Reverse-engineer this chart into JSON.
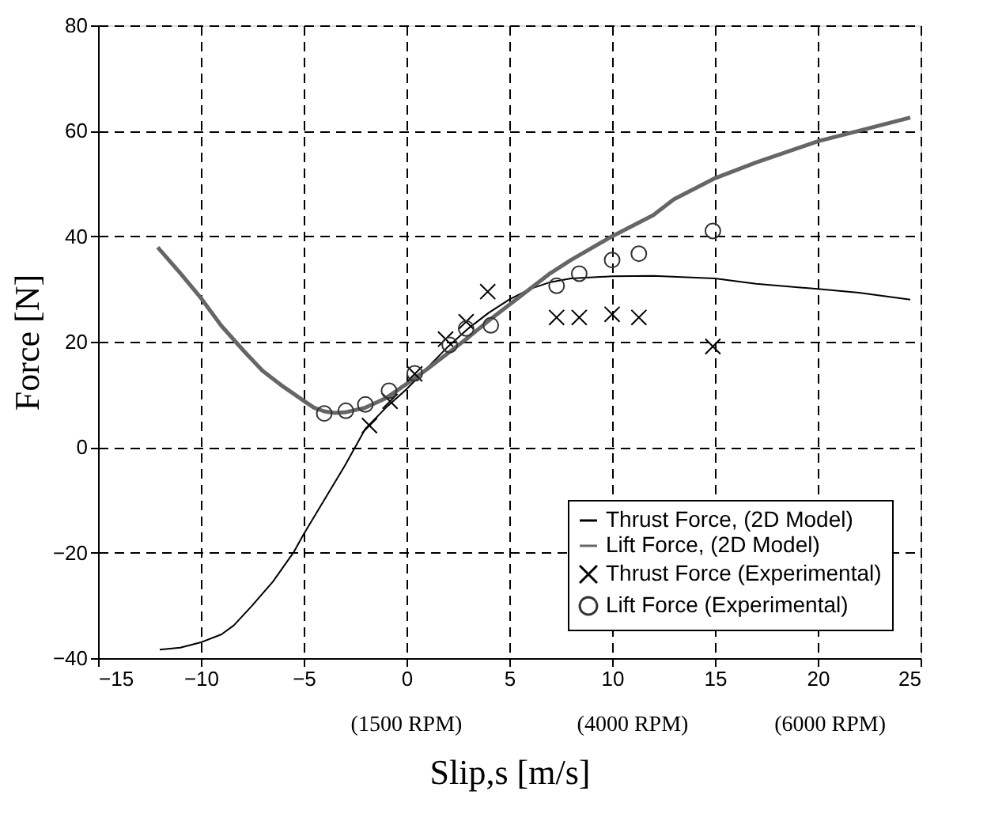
{
  "chart_data": {
    "type": "line",
    "xlabel": "Slip,s [m/s]",
    "ylabel": "Force [N]",
    "xlim": [
      -15,
      25
    ],
    "xticks": [
      -15,
      -10,
      -5,
      0,
      5,
      10,
      15,
      20,
      25
    ],
    "ylim": [
      -40,
      80
    ],
    "yticks": [
      -40,
      -20,
      0,
      20,
      40,
      60,
      80
    ],
    "grid": true,
    "legend": "bottom right",
    "annotations": [
      "(1500 RPM)",
      "(4000 RPM)",
      "(6000 RPM)"
    ],
    "series": [
      {
        "name": "Thrust Force, (2D Model)",
        "color": "#000000",
        "line_style": "solid",
        "marker": "none",
        "x": [
          -12,
          -11,
          -10,
          -9,
          -8.4,
          -7.5,
          -6.5,
          -5.5,
          -5,
          -4,
          -3,
          -2,
          -1,
          0,
          1,
          2,
          3,
          4,
          5,
          6,
          7,
          8,
          10,
          12,
          15,
          17,
          20,
          22,
          24.5
        ],
        "values": [
          -38.4,
          -38,
          -37,
          -35.5,
          -33.8,
          -30,
          -25.5,
          -20,
          -16.5,
          -10,
          -3.5,
          3.5,
          7.5,
          11,
          15,
          19,
          22.5,
          25.5,
          28,
          30,
          31.3,
          32,
          32.4,
          32.5,
          32,
          31,
          30,
          29.3,
          28
        ]
      },
      {
        "name": "Lift Force, (2D Model)",
        "color": "#666666",
        "line_style": "solid",
        "marker": "none",
        "x": [
          -12.1,
          -11,
          -10,
          -9,
          -7.9,
          -7,
          -6,
          -5,
          -4.5,
          -4,
          -3.5,
          -3,
          -2,
          -1,
          0,
          1,
          2,
          3,
          4,
          5,
          6,
          7,
          8,
          10,
          12,
          13,
          15,
          17,
          20,
          22,
          24.5
        ],
        "values": [
          37.9,
          33,
          28.3,
          23,
          18.2,
          14.5,
          11.5,
          8.8,
          7.5,
          6.8,
          6.5,
          6.6,
          7.5,
          9.3,
          12,
          14.8,
          17.8,
          20.8,
          24,
          27,
          30,
          33,
          35.5,
          40,
          44,
          47,
          51,
          54,
          58,
          60,
          62.5
        ]
      },
      {
        "name": "Thrust Force (Experimental)",
        "type": "scatter",
        "color": "#000000",
        "marker": "cross",
        "x": [
          -1.8,
          -0.8,
          0.4,
          1.9,
          2.9,
          3.95,
          7.3,
          8.4,
          10.0,
          11.3,
          14.9
        ],
        "values": [
          4.1,
          8.7,
          13.9,
          20.5,
          23.8,
          29.5,
          24.6,
          24.6,
          25.2,
          24.6,
          19.1
        ]
      },
      {
        "name": "Lift Force (Experimental)",
        "type": "scatter",
        "color": "#333333",
        "marker": "circle",
        "x": [
          -4.0,
          -2.95,
          -2.0,
          -0.85,
          0.4,
          2.1,
          2.9,
          4.1,
          7.3,
          8.4,
          10.0,
          11.3,
          14.9
        ],
        "values": [
          6.4,
          6.9,
          8.1,
          10.7,
          14,
          19.4,
          22.5,
          23.1,
          30.6,
          32.9,
          35.5,
          36.7,
          41
        ]
      }
    ]
  }
}
